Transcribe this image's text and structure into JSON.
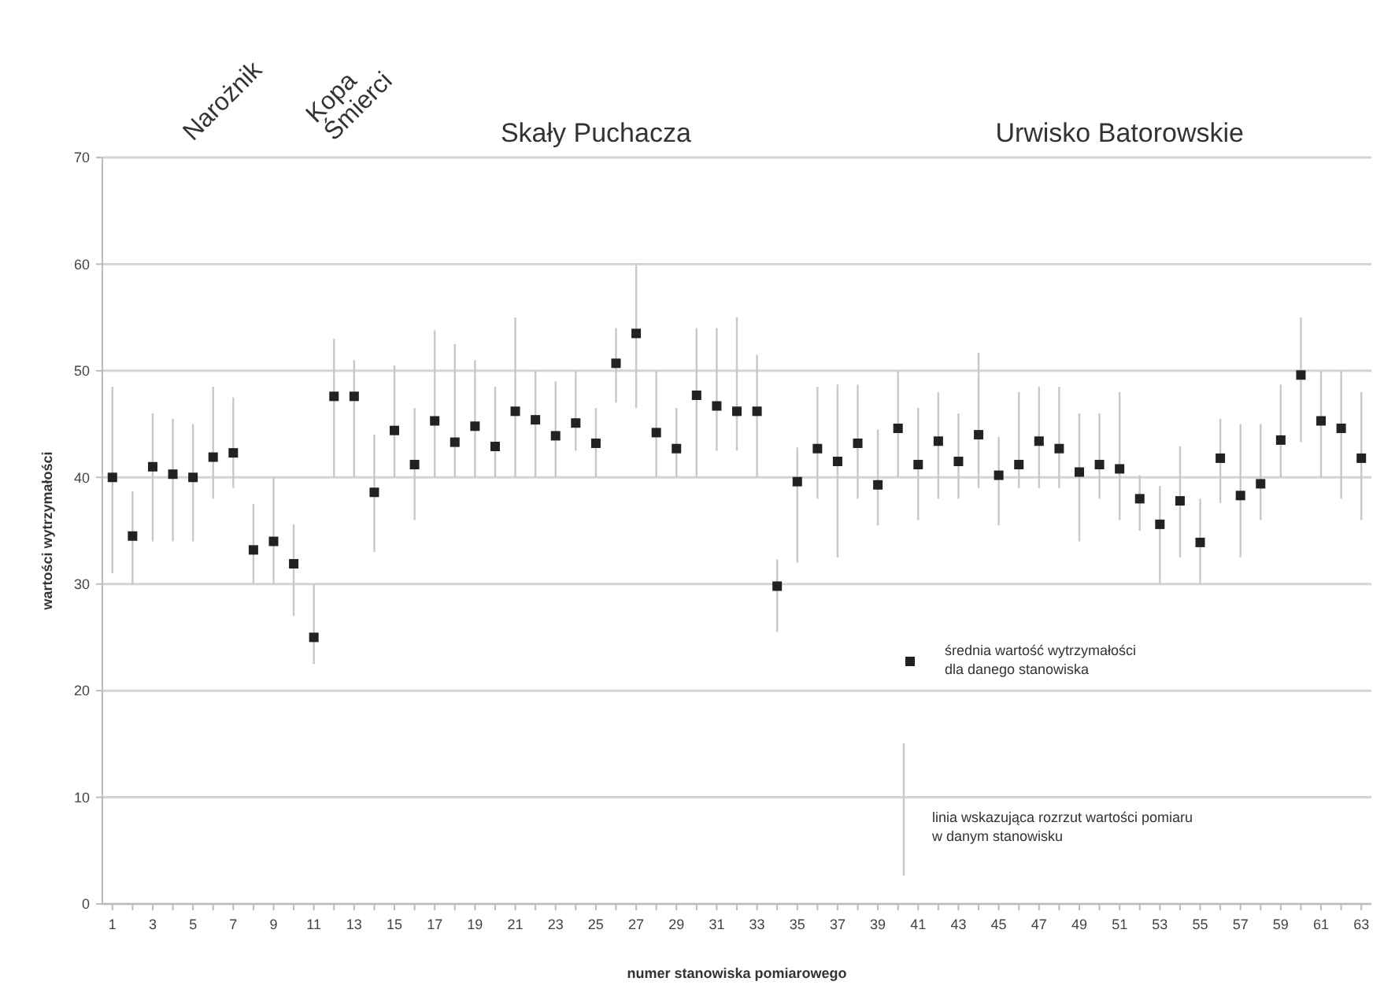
{
  "chart_data": {
    "type": "scatter",
    "xlabel": "numer stanowiska pomiarowego",
    "ylabel": "wartości wytrzymałości",
    "x": [
      1,
      2,
      3,
      4,
      5,
      6,
      7,
      8,
      9,
      10,
      11,
      12,
      13,
      14,
      15,
      16,
      17,
      18,
      19,
      20,
      21,
      22,
      23,
      24,
      25,
      26,
      27,
      28,
      29,
      30,
      31,
      32,
      33,
      34,
      35,
      36,
      37,
      38,
      39,
      40,
      41,
      42,
      43,
      44,
      45,
      46,
      47,
      48,
      49,
      50,
      51,
      52,
      53,
      54,
      55,
      56,
      57,
      58,
      59,
      60,
      61,
      62,
      63
    ],
    "xlim": [
      0.5,
      63.5
    ],
    "xticks": [
      1,
      {
        "value": 2,
        "label": null
      },
      3,
      {
        "value": 4,
        "label": null
      },
      5,
      {
        "value": 6,
        "label": null
      },
      7,
      {
        "value": 8,
        "label": null
      },
      9,
      {
        "value": 10,
        "label": null
      },
      11,
      {
        "value": 12,
        "label": null
      },
      13,
      {
        "value": 14,
        "label": null
      },
      15,
      {
        "value": 16,
        "label": null
      },
      17,
      {
        "value": 18,
        "label": null
      },
      19,
      {
        "value": 20,
        "label": null
      },
      21,
      {
        "value": 22,
        "label": null
      },
      23,
      {
        "value": 24,
        "label": null
      },
      25,
      {
        "value": 26,
        "label": null
      },
      27,
      {
        "value": 28,
        "label": null
      },
      29,
      {
        "value": 30,
        "label": null
      },
      31,
      {
        "value": 32,
        "label": null
      },
      33,
      {
        "value": 34,
        "label": null
      },
      35,
      {
        "value": 36,
        "label": null
      },
      37,
      {
        "value": 38,
        "label": null
      },
      39,
      {
        "value": 40,
        "label": null
      },
      41,
      {
        "value": 42,
        "label": null
      },
      43,
      {
        "value": 44,
        "label": null
      },
      45,
      {
        "value": 46,
        "label": null
      },
      47,
      {
        "value": 48,
        "label": null
      },
      49,
      {
        "value": 50,
        "label": null
      },
      51,
      {
        "value": 52,
        "label": null
      },
      53,
      {
        "value": 54,
        "label": null
      },
      55,
      {
        "value": 56,
        "label": null
      },
      57,
      {
        "value": 58,
        "label": null
      },
      59,
      {
        "value": 60,
        "label": null
      },
      61,
      {
        "value": 62,
        "label": null
      },
      63
    ],
    "series": [
      {
        "name": "średnia wartość wytrzymałości\ndla danego stanowiska",
        "color": "#222222",
        "values": [
          40,
          34.5,
          41,
          40.3,
          40,
          41.9,
          42.3,
          33.2,
          34,
          31.9,
          25,
          47.6,
          47.6,
          38.6,
          44.4,
          41.2,
          45.3,
          43.3,
          44.8,
          42.9,
          46.2,
          45.4,
          43.9,
          45.1,
          43.2,
          50.7,
          53.5,
          44.2,
          42.7,
          47.7,
          46.7,
          46.2,
          46.2,
          29.8,
          39.6,
          42.7,
          41.5,
          43.2,
          39.3,
          44.6,
          41.2,
          43.4,
          41.5,
          44,
          40.2,
          41.2,
          43.4,
          42.7,
          40.5,
          41.2,
          40.8,
          38,
          35.6,
          37.8,
          33.9,
          41.8,
          38.3,
          39.4,
          43.5,
          49.6,
          45.3,
          44.6,
          41.8
        ],
        "errors": [
          [
            31,
            48.5
          ],
          [
            30,
            38.7
          ],
          [
            34,
            46
          ],
          [
            34,
            45.5
          ],
          [
            34,
            45
          ],
          [
            38,
            48.5
          ],
          [
            39,
            47.5
          ],
          [
            30,
            37.5
          ],
          [
            30,
            40
          ],
          [
            27,
            35.6
          ],
          [
            22.5,
            30
          ],
          [
            40,
            53
          ],
          [
            40,
            51
          ],
          [
            33,
            44
          ],
          [
            40,
            50.5
          ],
          [
            36,
            46.5
          ],
          [
            40,
            53.8
          ],
          [
            40,
            52.5
          ],
          [
            40,
            51
          ],
          [
            40,
            48.5
          ],
          [
            40,
            55
          ],
          [
            40,
            50
          ],
          [
            40,
            49
          ],
          [
            42.5,
            50
          ],
          [
            40,
            46.5
          ],
          [
            47,
            54
          ],
          [
            46.5,
            60
          ],
          [
            40,
            50
          ],
          [
            40,
            46.5
          ],
          [
            40,
            54
          ],
          [
            42.5,
            54
          ],
          [
            42.5,
            55
          ],
          [
            40,
            51.5
          ],
          [
            25.5,
            32.3
          ],
          [
            32,
            42.8
          ],
          [
            38,
            48.5
          ],
          [
            32.5,
            48.7
          ],
          [
            38,
            48.7
          ],
          [
            35.5,
            44.5
          ],
          [
            40,
            50
          ],
          [
            36,
            46.5
          ],
          [
            38,
            48
          ],
          [
            38,
            46
          ],
          [
            39,
            51.7
          ],
          [
            35.5,
            43.8
          ],
          [
            39,
            48
          ],
          [
            39,
            48.5
          ],
          [
            39,
            48.5
          ],
          [
            34,
            46
          ],
          [
            38,
            46
          ],
          [
            36,
            48
          ],
          [
            35,
            40.2
          ],
          [
            30,
            39.2
          ],
          [
            32.5,
            42.9
          ],
          [
            30,
            38
          ],
          [
            37.6,
            45.5
          ],
          [
            32.5,
            45
          ],
          [
            36,
            45
          ],
          [
            40,
            48.7
          ],
          [
            43.3,
            55
          ],
          [
            40,
            50
          ],
          [
            38,
            50
          ],
          [
            36,
            48
          ]
        ]
      }
    ],
    "ylim": [
      0,
      70
    ],
    "yticks": [
      0,
      10,
      20,
      30,
      40,
      50,
      60,
      70
    ],
    "grid": "y",
    "marker": "square",
    "legend": "bottom right",
    "annotations": [
      "Narożnik",
      "Kopa\nŚmierci",
      "Skały Puchacza",
      "Urwisko Batorowskie",
      "linia wskazująca rozrzut wartości pomiaru\nw danym stanowisku"
    ]
  }
}
